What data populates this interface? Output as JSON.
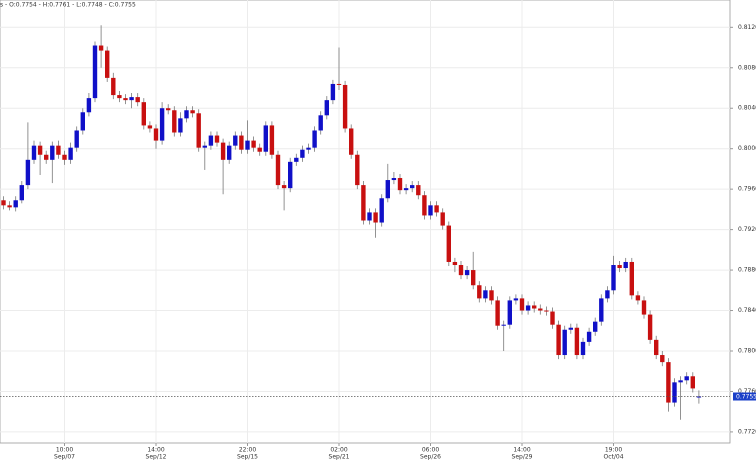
{
  "chart_data": {
    "type": "candlestick",
    "header": "s - O:0.7754 - H:0.7761 - L:0.7748 - C:0.7755",
    "up_color": "#1010c8",
    "down_color": "#c81010",
    "wick_color": "#777777",
    "grid": true,
    "categories": [
      null,
      null,
      null,
      null,
      null,
      null,
      null,
      null,
      null,
      null,
      [
        "10:00",
        "Sep/07"
      ],
      null,
      null,
      null,
      null,
      null,
      null,
      null,
      null,
      null,
      null,
      null,
      null,
      null,
      null,
      [
        "14:00",
        "Sep/12"
      ],
      null,
      null,
      null,
      null,
      null,
      null,
      null,
      null,
      null,
      null,
      null,
      null,
      null,
      null,
      [
        "22:00",
        "Sep/15"
      ],
      null,
      null,
      null,
      null,
      null,
      null,
      null,
      null,
      null,
      null,
      null,
      null,
      null,
      null,
      [
        "02:00",
        "Sep/21"
      ],
      null,
      null,
      null,
      null,
      null,
      null,
      null,
      null,
      null,
      null,
      null,
      null,
      null,
      null,
      [
        "06:00",
        "Sep/26"
      ],
      null,
      null,
      null,
      null,
      null,
      null,
      null,
      null,
      null,
      null,
      null,
      null,
      null,
      null,
      [
        "14:00",
        "Sep/29"
      ],
      null,
      null,
      null,
      null,
      null,
      null,
      null,
      null,
      null,
      null,
      null,
      null,
      null,
      null,
      [
        "19:00",
        "Oct/04"
      ],
      null,
      null,
      null,
      null,
      null,
      null,
      null,
      null,
      null,
      null,
      null,
      null,
      null,
      null
    ],
    "open": [
      0.7949,
      0.7944,
      0.7942,
      0.7949,
      0.7964,
      0.7989,
      0.8003,
      0.7994,
      0.7989,
      0.8003,
      0.7994,
      0.7989,
      0.8001,
      0.8018,
      0.8036,
      0.805,
      0.8102,
      0.8097,
      0.807,
      0.8053,
      0.805,
      0.8048,
      0.8051,
      0.8046,
      0.8023,
      0.802,
      0.8008,
      0.804,
      0.8038,
      0.8016,
      0.803,
      0.8038,
      0.8035,
      0.8001,
      0.8003,
      0.8013,
      0.8006,
      0.7989,
      0.8003,
      0.8013,
      0.7999,
      0.8008,
      0.8001,
      0.7997,
      0.8023,
      0.7994,
      0.7964,
      0.7961,
      0.7987,
      0.7991,
      0.7999,
      0.8001,
      0.8018,
      0.8033,
      0.8048,
      0.8064,
      0.8063,
      0.802,
      0.7994,
      0.7964,
      0.7929,
      0.7937,
      0.7927,
      0.7951,
      0.7969,
      0.7971,
      0.7959,
      0.7961,
      0.7964,
      0.7954,
      0.7934,
      0.7944,
      0.7937,
      0.7924,
      0.7888,
      0.7885,
      0.7875,
      0.788,
      0.7865,
      0.7852,
      0.786,
      0.785,
      0.7825,
      0.7826,
      0.785,
      0.7852,
      0.784,
      0.7845,
      0.7842,
      0.784,
      0.7839,
      0.7826,
      0.7796,
      0.7821,
      0.7823,
      0.7796,
      0.7809,
      0.7819,
      0.7829,
      0.7852,
      0.786,
      0.7885,
      0.7882,
      0.7888,
      0.7855,
      0.785,
      0.7836,
      0.7811,
      0.7796,
      0.7789,
      0.7749,
      0.7769,
      0.7771,
      0.7775,
      0.7754
    ],
    "high": [
      0.7953,
      0.7948,
      0.7953,
      0.7968,
      0.8026,
      0.8008,
      0.8007,
      0.7998,
      0.8007,
      0.8008,
      0.7998,
      0.8006,
      0.8022,
      0.804,
      0.8055,
      0.8106,
      0.8122,
      0.8101,
      0.8075,
      0.8057,
      0.8054,
      0.8055,
      0.8055,
      0.805,
      0.8027,
      0.8024,
      0.8046,
      0.8044,
      0.8042,
      0.8036,
      0.8042,
      0.8042,
      0.8039,
      0.8007,
      0.8017,
      0.8017,
      0.801,
      0.8007,
      0.8017,
      0.8017,
      0.8028,
      0.8012,
      0.8005,
      0.8027,
      0.8027,
      0.7998,
      0.7968,
      0.7991,
      0.7995,
      0.8003,
      0.8005,
      0.8022,
      0.8037,
      0.8052,
      0.8068,
      0.81,
      0.8067,
      0.8024,
      0.7998,
      0.7968,
      0.7941,
      0.7941,
      0.7955,
      0.7985,
      0.7977,
      0.7975,
      0.7965,
      0.7968,
      0.7968,
      0.7958,
      0.7948,
      0.7948,
      0.7941,
      0.7928,
      0.7892,
      0.7889,
      0.7884,
      0.7898,
      0.7869,
      0.7864,
      0.7864,
      0.7854,
      0.783,
      0.7854,
      0.7856,
      0.7856,
      0.7849,
      0.7849,
      0.7846,
      0.7844,
      0.7843,
      0.783,
      0.7825,
      0.7827,
      0.7827,
      0.7813,
      0.7823,
      0.7833,
      0.7856,
      0.7864,
      0.7894,
      0.7889,
      0.7892,
      0.7892,
      0.7859,
      0.7854,
      0.784,
      0.7815,
      0.78,
      0.7793,
      0.7773,
      0.7775,
      0.7779,
      0.7779,
      0.7761
    ],
    "low": [
      0.794,
      0.7939,
      0.7938,
      0.7946,
      0.796,
      0.7985,
      0.7974,
      0.7985,
      0.7966,
      0.799,
      0.7984,
      0.7985,
      0.7997,
      0.8014,
      0.8032,
      0.8046,
      0.808,
      0.8066,
      0.8049,
      0.8046,
      0.8044,
      0.804,
      0.8042,
      0.8019,
      0.8016,
      0.8,
      0.8004,
      0.8034,
      0.8012,
      0.8012,
      0.8026,
      0.8031,
      0.7997,
      0.7979,
      0.7999,
      0.8002,
      0.7955,
      0.7985,
      0.7999,
      0.7995,
      0.7995,
      0.7997,
      0.7993,
      0.7993,
      0.799,
      0.796,
      0.7939,
      0.7957,
      0.7983,
      0.7987,
      0.7995,
      0.7997,
      0.8014,
      0.8029,
      0.8044,
      0.8058,
      0.8016,
      0.799,
      0.796,
      0.7925,
      0.7925,
      0.7912,
      0.7923,
      0.7947,
      0.7965,
      0.7955,
      0.7955,
      0.7957,
      0.795,
      0.793,
      0.793,
      0.7933,
      0.792,
      0.7884,
      0.7878,
      0.7871,
      0.7871,
      0.7861,
      0.7848,
      0.7848,
      0.7846,
      0.7821,
      0.78,
      0.7822,
      0.7846,
      0.7836,
      0.7836,
      0.7838,
      0.7836,
      0.7835,
      0.7822,
      0.7792,
      0.7792,
      0.7817,
      0.7792,
      0.7792,
      0.7805,
      0.7815,
      0.7825,
      0.7848,
      0.7856,
      0.7878,
      0.7878,
      0.7851,
      0.7846,
      0.7832,
      0.7807,
      0.7792,
      0.7785,
      0.774,
      0.7745,
      0.7732,
      0.7767,
      0.7759,
      0.7748
    ],
    "close": [
      0.7944,
      0.7942,
      0.7949,
      0.7964,
      0.7989,
      0.8003,
      0.7994,
      0.7989,
      0.8003,
      0.7994,
      0.7989,
      0.8001,
      0.8018,
      0.8036,
      0.805,
      0.8102,
      0.8097,
      0.807,
      0.8053,
      0.805,
      0.8048,
      0.8051,
      0.8046,
      0.8023,
      0.802,
      0.8008,
      0.804,
      0.8038,
      0.8016,
      0.803,
      0.8038,
      0.8035,
      0.8001,
      0.8003,
      0.8013,
      0.8006,
      0.7989,
      0.8003,
      0.8013,
      0.7999,
      0.8008,
      0.8001,
      0.7997,
      0.8023,
      0.7994,
      0.7964,
      0.7961,
      0.7987,
      0.7991,
      0.7999,
      0.8001,
      0.8018,
      0.8033,
      0.8048,
      0.8064,
      0.8063,
      0.802,
      0.7994,
      0.7964,
      0.7929,
      0.7937,
      0.7927,
      0.7951,
      0.7969,
      0.7971,
      0.7959,
      0.7961,
      0.7964,
      0.7954,
      0.7934,
      0.7944,
      0.7937,
      0.7924,
      0.7888,
      0.7885,
      0.7875,
      0.788,
      0.7865,
      0.7852,
      0.786,
      0.785,
      0.7825,
      0.7826,
      0.785,
      0.7852,
      0.784,
      0.7845,
      0.7842,
      0.784,
      0.7839,
      0.7826,
      0.7796,
      0.7821,
      0.7823,
      0.7796,
      0.7809,
      0.7819,
      0.7829,
      0.7852,
      0.786,
      0.7885,
      0.7882,
      0.7888,
      0.7855,
      0.785,
      0.7836,
      0.7811,
      0.7796,
      0.7789,
      0.7749,
      0.7769,
      0.7771,
      0.7775,
      0.7763,
      0.7755
    ],
    "last_price": {
      "value": 0.7755,
      "label": "0.7755"
    },
    "ylim": [
      0.7712,
      0.8147
    ],
    "yticks": [
      {
        "value": 0.772,
        "label": "0.7720"
      },
      {
        "value": 0.776,
        "label": "0.7760"
      },
      {
        "value": 0.78,
        "label": "0.7800"
      },
      {
        "value": 0.784,
        "label": "0.7840"
      },
      {
        "value": 0.788,
        "label": "0.7880"
      },
      {
        "value": 0.792,
        "label": "0.7920"
      },
      {
        "value": 0.796,
        "label": "0.7960"
      },
      {
        "value": 0.8,
        "label": "0.8000"
      },
      {
        "value": 0.804,
        "label": "0.8040"
      },
      {
        "value": 0.808,
        "label": "0.8080"
      },
      {
        "value": 0.812,
        "label": "0.8120"
      }
    ]
  }
}
